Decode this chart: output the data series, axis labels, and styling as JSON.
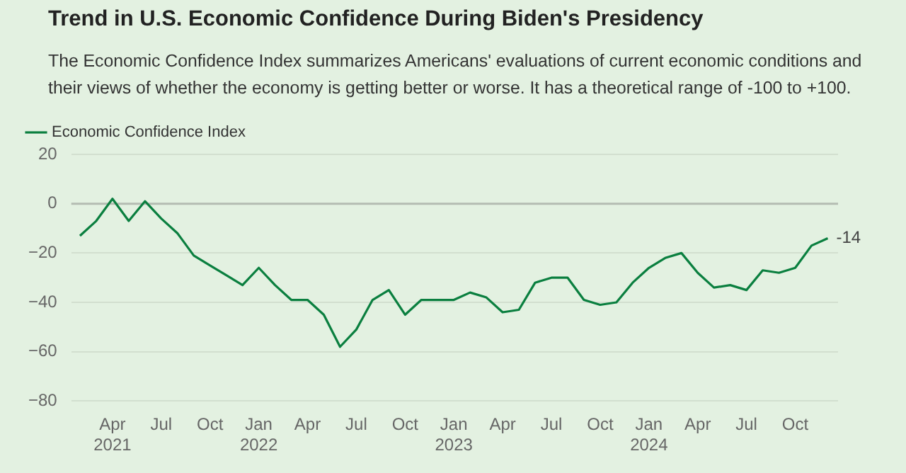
{
  "chart_data": {
    "type": "line",
    "title": "Trend in U.S. Economic Confidence During Biden's Presidency",
    "subtitle": "The Economic Confidence Index summarizes Americans' evaluations of current economic conditions and their views of whether the economy is getting better or worse. It has a theoretical range of -100 to +100.",
    "x": [
      "2021-02",
      "2021-03",
      "2021-04",
      "2021-05",
      "2021-06",
      "2021-07",
      "2021-08",
      "2021-09",
      "2021-10",
      "2021-11",
      "2021-12",
      "2022-01",
      "2022-02",
      "2022-03",
      "2022-04",
      "2022-05",
      "2022-06",
      "2022-07",
      "2022-08",
      "2022-09",
      "2022-10",
      "2022-11",
      "2022-12",
      "2023-01",
      "2023-02",
      "2023-03",
      "2023-04",
      "2023-05",
      "2023-06",
      "2023-07",
      "2023-08",
      "2023-09",
      "2023-10",
      "2023-11",
      "2023-12",
      "2024-01",
      "2024-02",
      "2024-03",
      "2024-04",
      "2024-05",
      "2024-06",
      "2024-07",
      "2024-08",
      "2024-09",
      "2024-10",
      "2024-11",
      "2024-12"
    ],
    "series": [
      {
        "name": "Economic Confidence Index",
        "color": "#0a7f3f",
        "values": [
          -13,
          -7,
          2,
          -7,
          1,
          -6,
          -12,
          -21,
          -25,
          -29,
          -33,
          -26,
          -33,
          -39,
          -39,
          -45,
          -58,
          -51,
          -39,
          -35,
          -45,
          -39,
          -39,
          -39,
          -36,
          -38,
          -44,
          -43,
          -32,
          -30,
          -30,
          -39,
          -41,
          -40,
          -32,
          -26,
          -22,
          -20,
          -28,
          -34,
          -33,
          -35,
          -27,
          -28,
          -26,
          -17,
          -14
        ]
      }
    ],
    "xlim": [
      "2021-01-15",
      "2024-12-20"
    ],
    "xticks": [
      {
        "value": "2021-04",
        "label": "Apr 2021"
      },
      {
        "value": "2021-07",
        "label": "Jul"
      },
      {
        "value": "2021-10",
        "label": "Oct"
      },
      {
        "value": "2022-01",
        "label": "Jan 2022"
      },
      {
        "value": "2022-04",
        "label": "Apr"
      },
      {
        "value": "2022-07",
        "label": "Jul"
      },
      {
        "value": "2022-10",
        "label": "Oct"
      },
      {
        "value": "2023-01",
        "label": "Jan 2023"
      },
      {
        "value": "2023-04",
        "label": "Apr"
      },
      {
        "value": "2023-07",
        "label": "Jul"
      },
      {
        "value": "2023-10",
        "label": "Oct"
      },
      {
        "value": "2024-01",
        "label": "Jan 2024"
      },
      {
        "value": "2024-04",
        "label": "Apr"
      },
      {
        "value": "2024-07",
        "label": "Jul"
      },
      {
        "value": "2024-10",
        "label": "Oct"
      }
    ],
    "ylim": [
      -80,
      20
    ],
    "yticks": [
      -80,
      -60,
      -40,
      -20,
      0,
      20
    ],
    "ref_lines": [
      {
        "axis": "y",
        "value": 0,
        "color": "#b4bcb2"
      }
    ],
    "annotations": [
      {
        "text": "-14",
        "x": "2024-12",
        "y": -14
      }
    ],
    "grid": "y",
    "legend": "top left",
    "marker": "none",
    "line_style": "solid"
  }
}
